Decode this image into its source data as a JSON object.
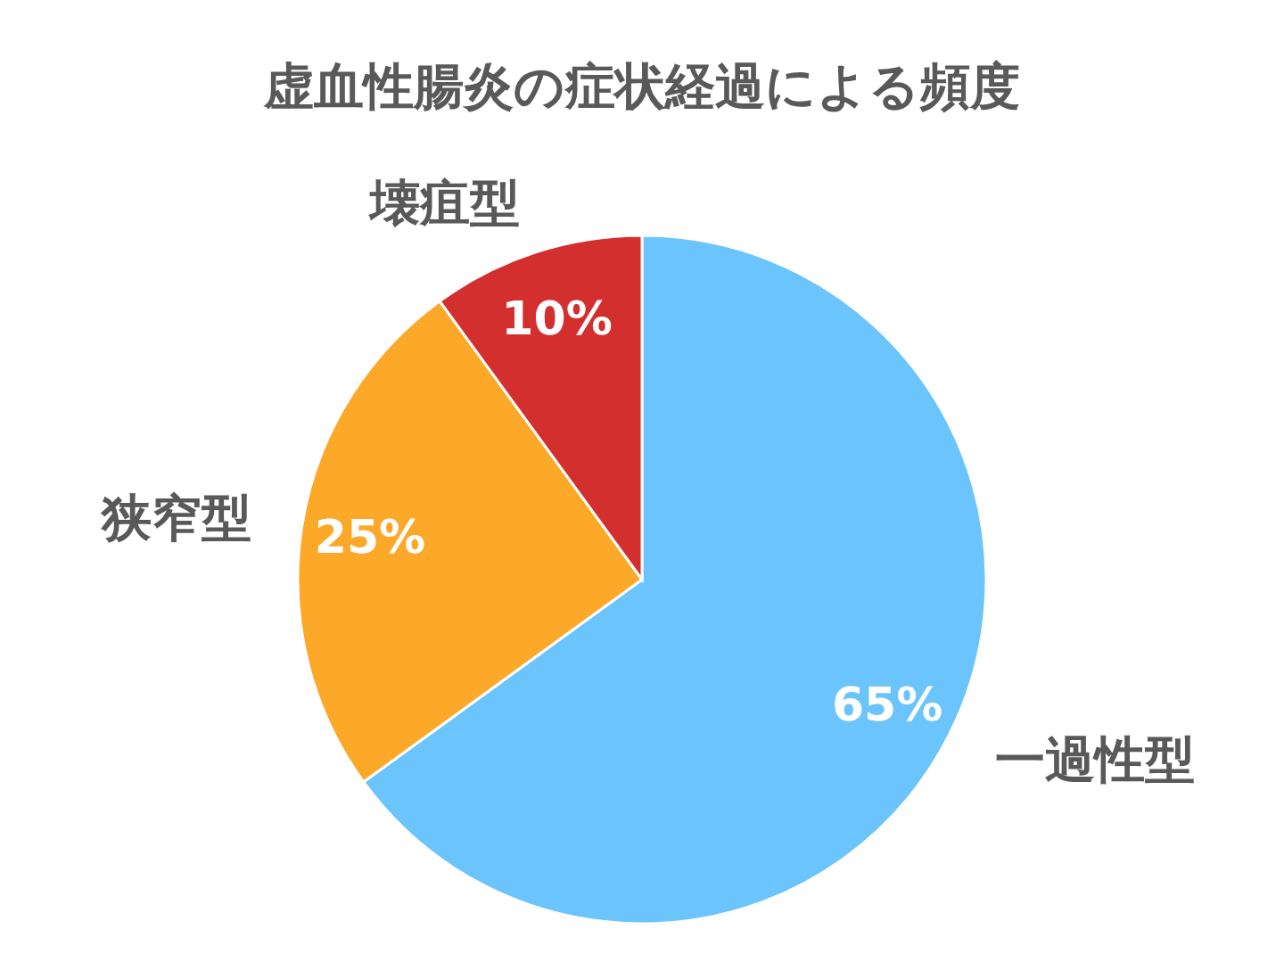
{
  "chart_data": {
    "type": "pie",
    "title": "虚血性腸炎の症状経過による頻度",
    "categories": [
      "一過性型",
      "狭窄型",
      "壊疽型"
    ],
    "values": [
      65,
      25,
      10
    ],
    "colors": [
      "#6cc4fc",
      "#fca828",
      "#d42f2f"
    ],
    "value_labels": [
      "65%",
      "25%",
      "10%"
    ]
  }
}
